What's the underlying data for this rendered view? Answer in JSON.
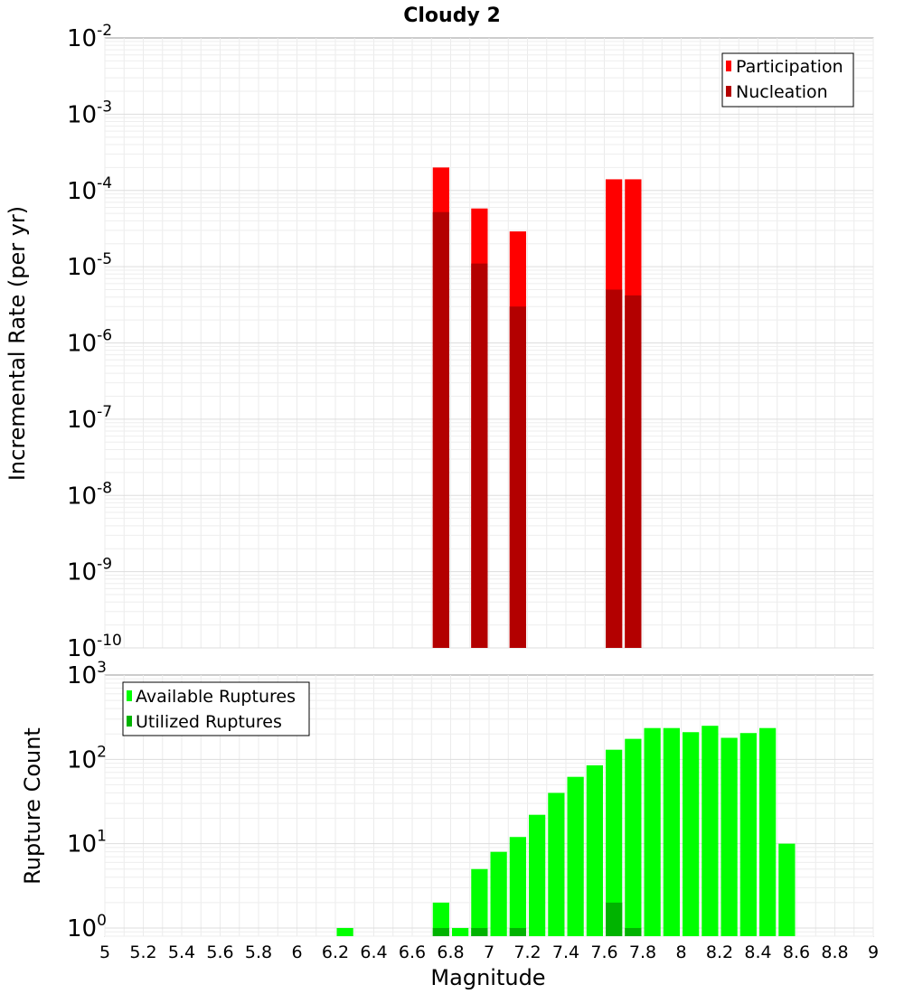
{
  "title": "Cloudy 2",
  "chart_data": [
    {
      "type": "bar",
      "scale": "log",
      "ylabel": "Incremental Rate (per yr)",
      "ylim": [
        1e-10,
        0.01
      ],
      "ytick_exponents": [
        "-10",
        "-9",
        "-8",
        "-7",
        "-6",
        "-5",
        "-4",
        "-3",
        "-2"
      ],
      "grid": true,
      "legend_position": "top-right",
      "overlay": true,
      "series": [
        {
          "name": "Participation",
          "color": "#ff0000",
          "points": [
            {
              "x": 6.75,
              "y": 0.0002
            },
            {
              "x": 6.95,
              "y": 5.8e-05
            },
            {
              "x": 7.15,
              "y": 2.9e-05
            },
            {
              "x": 7.65,
              "y": 0.00014
            },
            {
              "x": 7.75,
              "y": 0.00014
            }
          ]
        },
        {
          "name": "Nucleation",
          "color": "#b30000",
          "points": [
            {
              "x": 6.75,
              "y": 5.2e-05
            },
            {
              "x": 6.95,
              "y": 1.1e-05
            },
            {
              "x": 7.15,
              "y": 3e-06
            },
            {
              "x": 7.65,
              "y": 5e-06
            },
            {
              "x": 7.75,
              "y": 4.2e-06
            }
          ]
        }
      ]
    },
    {
      "type": "bar",
      "scale": "log",
      "xlabel": "Magnitude",
      "ylabel": "Rupture Count",
      "xlim": [
        5,
        9
      ],
      "xticks": [
        "5",
        "5.2",
        "5.4",
        "5.6",
        "5.8",
        "6",
        "6.2",
        "6.4",
        "6.6",
        "6.8",
        "7",
        "7.2",
        "7.4",
        "7.6",
        "7.8",
        "8",
        "8.2",
        "8.4",
        "8.6",
        "8.8",
        "9"
      ],
      "ylim": [
        0.8,
        1000
      ],
      "ytick_exponents": [
        "0",
        "1",
        "2",
        "3"
      ],
      "grid": true,
      "legend_position": "top-left",
      "overlay": true,
      "series": [
        {
          "name": "Available Ruptures",
          "color": "#00ff00",
          "points": [
            {
              "x": 6.25,
              "y": 1
            },
            {
              "x": 6.75,
              "y": 2
            },
            {
              "x": 6.85,
              "y": 1
            },
            {
              "x": 6.95,
              "y": 5
            },
            {
              "x": 7.05,
              "y": 8
            },
            {
              "x": 7.15,
              "y": 12
            },
            {
              "x": 7.25,
              "y": 22
            },
            {
              "x": 7.35,
              "y": 40
            },
            {
              "x": 7.45,
              "y": 62
            },
            {
              "x": 7.55,
              "y": 85
            },
            {
              "x": 7.65,
              "y": 130
            },
            {
              "x": 7.75,
              "y": 175
            },
            {
              "x": 7.85,
              "y": 235
            },
            {
              "x": 7.95,
              "y": 235
            },
            {
              "x": 8.05,
              "y": 210
            },
            {
              "x": 8.15,
              "y": 250
            },
            {
              "x": 8.25,
              "y": 180
            },
            {
              "x": 8.35,
              "y": 205
            },
            {
              "x": 8.45,
              "y": 235
            },
            {
              "x": 8.55,
              "y": 10
            }
          ]
        },
        {
          "name": "Utilized Ruptures",
          "color": "#00b300",
          "points": [
            {
              "x": 6.75,
              "y": 1
            },
            {
              "x": 6.95,
              "y": 1
            },
            {
              "x": 7.15,
              "y": 1
            },
            {
              "x": 7.65,
              "y": 2
            },
            {
              "x": 7.75,
              "y": 1
            }
          ]
        }
      ]
    }
  ]
}
